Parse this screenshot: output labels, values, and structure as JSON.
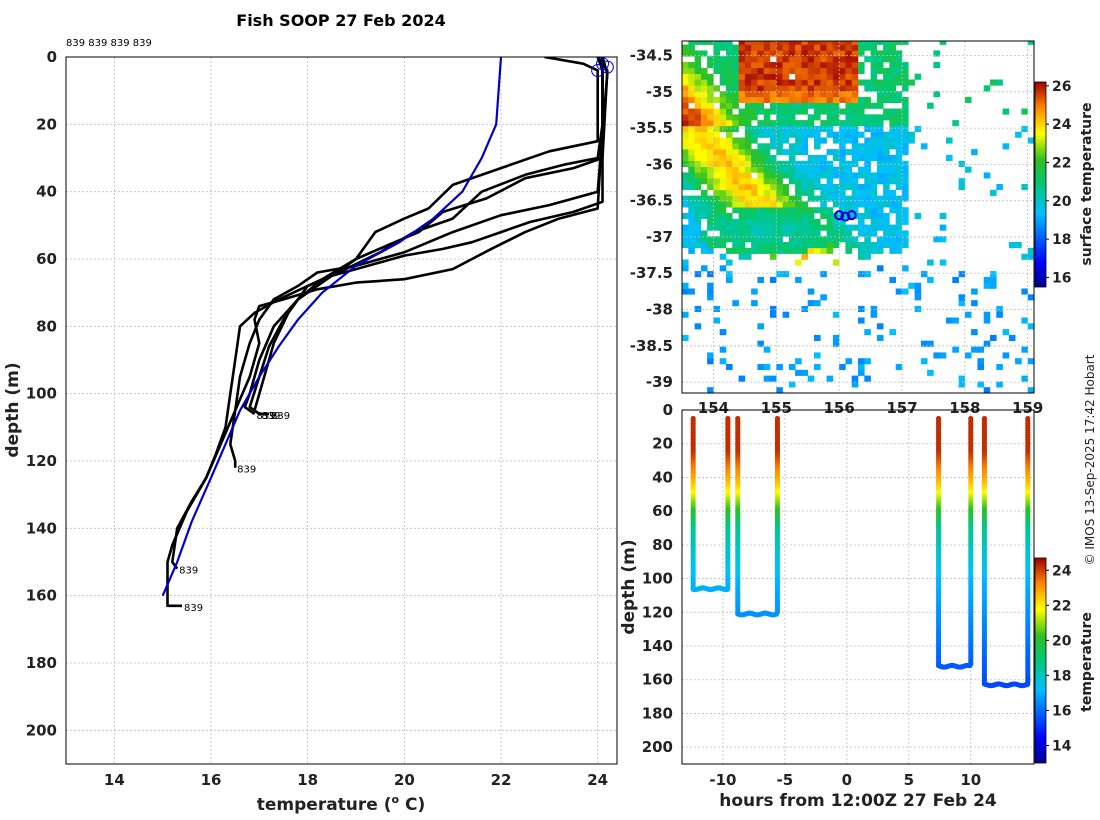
{
  "credit": "© IMOS 13-Sep-2025 17:42 Hobart",
  "chart_data": [
    {
      "id": "profiles",
      "type": "line",
      "title": "Fish SOOP 27 Feb 2024",
      "xlabel": "temperature (",
      "xlabel_sup": "o",
      "xlabel_end": " C)",
      "ylabel": "depth (m)",
      "xlim": [
        13,
        24.4
      ],
      "ylim": [
        0,
        210
      ],
      "y_inverted": true,
      "xticks": [
        14,
        16,
        18,
        20,
        22,
        24
      ],
      "yticks": [
        0,
        20,
        40,
        60,
        80,
        100,
        120,
        140,
        160,
        180,
        200
      ],
      "top_labels": "839 839 839 839",
      "climatology": {
        "name": "climatology",
        "color": "#0000cc",
        "points": [
          [
            22.0,
            0
          ],
          [
            21.9,
            20
          ],
          [
            21.6,
            30
          ],
          [
            21.2,
            40
          ],
          [
            20.6,
            48
          ],
          [
            19.9,
            55
          ],
          [
            19.0,
            62
          ],
          [
            18.3,
            70
          ],
          [
            17.8,
            78
          ],
          [
            17.4,
            86
          ],
          [
            17.0,
            95
          ],
          [
            16.6,
            105
          ],
          [
            16.3,
            115
          ],
          [
            16.0,
            125
          ],
          [
            15.6,
            138
          ],
          [
            15.3,
            150
          ],
          [
            15.0,
            160
          ]
        ]
      },
      "profiles": [
        {
          "name": "profile 1",
          "points": [
            [
              22.9,
              0
            ],
            [
              23.7,
              2
            ],
            [
              24.0,
              4
            ],
            [
              24.0,
              15
            ],
            [
              24.0,
              25
            ],
            [
              23.0,
              28
            ],
            [
              22.0,
              33
            ],
            [
              21.0,
              38
            ],
            [
              20.5,
              45
            ],
            [
              20.0,
              48
            ],
            [
              19.4,
              52
            ],
            [
              19.0,
              60
            ],
            [
              18.6,
              64
            ],
            [
              18.0,
              68
            ],
            [
              17.6,
              76
            ],
            [
              17.3,
              85
            ],
            [
              17.1,
              95
            ],
            [
              16.9,
              105
            ],
            [
              17.0,
              106
            ],
            [
              17.2,
              106
            ]
          ],
          "end": [
            17.2,
            106
          ],
          "label": "839"
        },
        {
          "name": "profile 2",
          "points": [
            [
              24.0,
              0
            ],
            [
              24.1,
              4
            ],
            [
              24.1,
              20
            ],
            [
              24.0,
              30
            ],
            [
              23.3,
              32
            ],
            [
              22.5,
              35
            ],
            [
              21.6,
              40
            ],
            [
              21.0,
              48
            ],
            [
              20.2,
              52
            ],
            [
              19.5,
              58
            ],
            [
              18.5,
              65
            ],
            [
              17.8,
              72
            ],
            [
              17.3,
              80
            ],
            [
              17.0,
              90
            ],
            [
              16.8,
              100
            ],
            [
              16.7,
              104
            ],
            [
              16.9,
              106
            ]
          ],
          "end": [
            16.9,
            106
          ],
          "label": "839"
        },
        {
          "name": "profile 3",
          "points": [
            [
              24.0,
              0
            ],
            [
              24.2,
              4
            ],
            [
              24.1,
              30
            ],
            [
              23.5,
              33
            ],
            [
              22.5,
              36
            ],
            [
              21.7,
              42
            ],
            [
              20.8,
              46
            ],
            [
              20.3,
              52
            ],
            [
              19.8,
              55
            ],
            [
              19.0,
              60
            ],
            [
              18.3,
              66
            ],
            [
              17.8,
              72
            ],
            [
              17.5,
              78
            ],
            [
              17.2,
              86
            ],
            [
              17.0,
              95
            ],
            [
              16.8,
              104
            ],
            [
              17.0,
              106
            ]
          ],
          "end": [
            17.0,
            106
          ],
          "label": "839"
        },
        {
          "name": "profile 4",
          "points": [
            [
              24.1,
              0
            ],
            [
              24.2,
              5
            ],
            [
              24.0,
              40
            ],
            [
              23.0,
              44
            ],
            [
              22.0,
              47
            ],
            [
              21.0,
              52
            ],
            [
              20.0,
              58
            ],
            [
              19.0,
              62
            ],
            [
              18.2,
              64
            ],
            [
              17.8,
              68
            ],
            [
              17.3,
              72
            ],
            [
              17.0,
              78
            ],
            [
              16.8,
              85
            ],
            [
              16.6,
              95
            ],
            [
              16.5,
              105
            ],
            [
              16.4,
              115
            ],
            [
              16.5,
              120
            ],
            [
              16.5,
              122
            ]
          ],
          "end": [
            16.5,
            122
          ],
          "label": "839"
        },
        {
          "name": "profile 5",
          "points": [
            [
              24.1,
              0
            ],
            [
              24.1,
              10
            ],
            [
              24.1,
              43
            ],
            [
              23.5,
              46
            ],
            [
              22.6,
              49
            ],
            [
              22.0,
              52
            ],
            [
              21.4,
              55
            ],
            [
              20.8,
              57
            ],
            [
              20.0,
              59
            ],
            [
              19.5,
              61
            ],
            [
              19.0,
              63
            ],
            [
              18.5,
              65
            ],
            [
              18.0,
              68
            ],
            [
              17.4,
              72
            ],
            [
              16.9,
              76
            ],
            [
              16.6,
              80
            ],
            [
              16.5,
              90
            ],
            [
              16.4,
              100
            ],
            [
              16.3,
              110
            ],
            [
              16.1,
              118
            ],
            [
              15.9,
              125
            ],
            [
              15.6,
              132
            ],
            [
              15.3,
              140
            ],
            [
              15.2,
              150
            ],
            [
              15.3,
              152
            ]
          ],
          "end": [
            15.3,
            152
          ],
          "label": "839"
        },
        {
          "name": "profile 6",
          "points": [
            [
              24.1,
              0
            ],
            [
              24.1,
              20
            ],
            [
              24.0,
              45
            ],
            [
              23.2,
              48
            ],
            [
              22.5,
              52
            ],
            [
              21.8,
              57
            ],
            [
              21.0,
              63
            ],
            [
              20.0,
              66
            ],
            [
              19.0,
              67
            ],
            [
              18.2,
              69
            ],
            [
              17.5,
              72
            ],
            [
              17.0,
              74
            ],
            [
              16.9,
              78
            ],
            [
              17.0,
              85
            ],
            [
              16.8,
              95
            ],
            [
              16.5,
              105
            ],
            [
              16.2,
              115
            ],
            [
              15.9,
              125
            ],
            [
              15.5,
              135
            ],
            [
              15.2,
              145
            ],
            [
              15.1,
              150
            ],
            [
              15.1,
              160
            ],
            [
              15.1,
              163
            ],
            [
              15.4,
              163
            ]
          ],
          "end": [
            15.4,
            163
          ],
          "label": "839"
        }
      ],
      "markers": [
        [
          24.1,
          2
        ],
        [
          24.2,
          3
        ],
        [
          24.0,
          4
        ]
      ]
    },
    {
      "id": "map",
      "type": "heatmap",
      "xlim": [
        153.5,
        159.1
      ],
      "ylim": [
        -39.15,
        -34.3
      ],
      "xticks": [
        154,
        155,
        156,
        157,
        158,
        159
      ],
      "xtick_labels": [
        "154",
        "155",
        "156",
        "157",
        "158",
        "159"
      ],
      "yticks": [
        -34.5,
        -35,
        -35.5,
        -36,
        -36.5,
        -37,
        -37.5,
        -38,
        -38.5,
        -39
      ],
      "colorbar_label": "surface temperature",
      "colorbar_range": [
        15.5,
        26.2
      ],
      "colorbar_ticks": [
        16,
        18,
        20,
        22,
        24,
        26
      ],
      "track": [
        [
          156.0,
          -36.7
        ],
        [
          156.1,
          -36.72
        ],
        [
          156.2,
          -36.7
        ]
      ]
    },
    {
      "id": "timeseries",
      "type": "scatter",
      "xlabel": "hours from 12:00Z 27 Feb 24",
      "ylabel": "depth (m)",
      "xlim": [
        -13.3,
        15.1
      ],
      "ylim": [
        0,
        210
      ],
      "y_inverted": true,
      "xticks": [
        -10,
        -5,
        0,
        5,
        10
      ],
      "yticks": [
        0,
        20,
        40,
        60,
        80,
        100,
        120,
        140,
        160,
        180,
        200
      ],
      "colorbar_label": "temperature",
      "colorbar_range": [
        13.0,
        24.7
      ],
      "colorbar_ticks": [
        14,
        16,
        18,
        20,
        22,
        24
      ],
      "casts": [
        {
          "down_x": -12.4,
          "up_x": -9.6,
          "start": 5,
          "bottom": 106
        },
        {
          "down_x": -8.8,
          "up_x": -5.6,
          "start": 5,
          "bottom": 121
        },
        {
          "down_x": 7.4,
          "up_x": 10.0,
          "start": 5,
          "bottom": 152
        },
        {
          "down_x": 11.1,
          "up_x": 14.6,
          "start": 5,
          "bottom": 163
        }
      ]
    }
  ]
}
